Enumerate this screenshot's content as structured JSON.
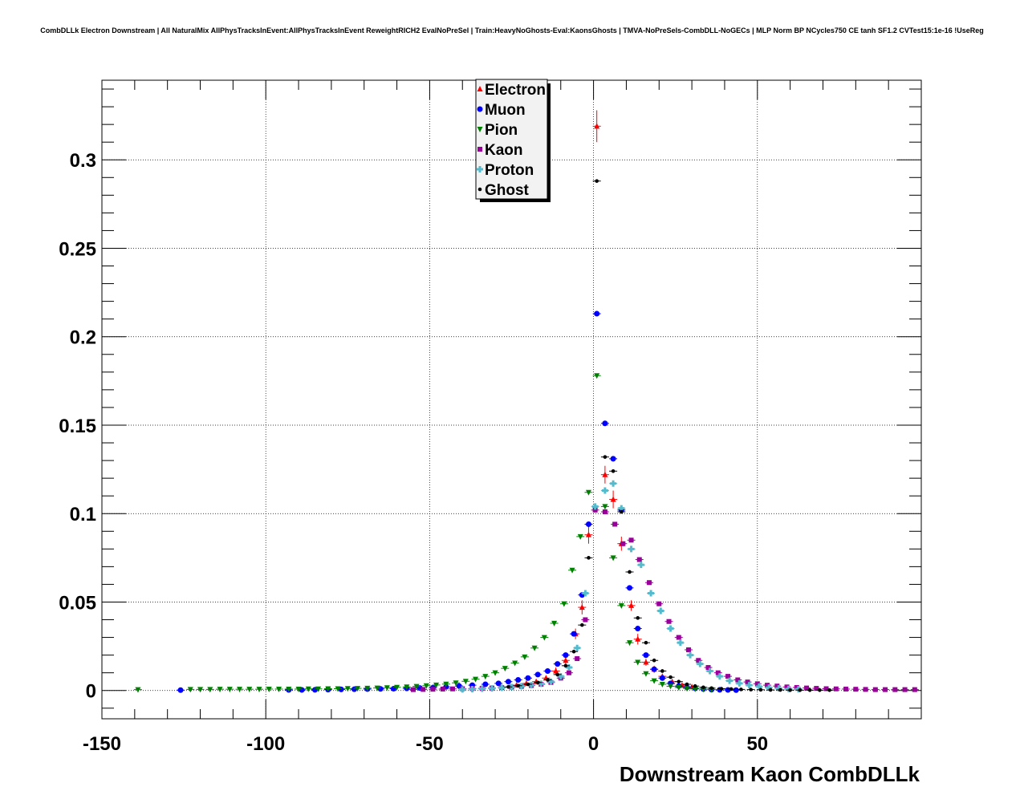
{
  "title": "CombDLLk Electron Downstream | All NaturalMix AllPhysTracksInEvent:AllPhysTracksInEvent ReweightRICH2 EvalNoPreSel | Train:HeavyNoGhosts-Eval:KaonsGhosts | TMVA-NoPreSels-CombDLL-NoGECs | MLP Norm BP NCycles750 CE tanh SF1.2 CVTest15:1e-16 !UseReg",
  "chart_data": {
    "type": "scatter",
    "title": "CombDLLk Electron Downstream | All NaturalMix AllPhysTracksInEvent:AllPhysTracksInEvent ReweightRICH2 EvalNoPreSel | Train:HeavyNoGhosts-Eval:KaonsGhosts | TMVA-NoPreSels-CombDLL-NoGECs | MLP Norm BP NCycles750 CE tanh SF1.2 CVTest15:1e-16 !UseReg",
    "xlabel": "Downstream Kaon CombDLLk",
    "ylabel": "",
    "xlim": [
      -150,
      100
    ],
    "ylim": [
      -0.016,
      0.345
    ],
    "grid": true,
    "legend_position": "top-center",
    "xticks": [
      -150,
      -100,
      -50,
      0,
      50
    ],
    "xtick_labels": [
      "-150",
      "-100",
      "-50",
      "0",
      "50"
    ],
    "yticks": [
      0,
      0.05,
      0.1,
      0.15,
      0.2,
      0.25,
      0.3
    ],
    "ytick_labels": [
      "0",
      "0.05",
      "0.1",
      "0.15",
      "0.2",
      "0.25",
      "0.3"
    ],
    "series": [
      {
        "name": "Electron",
        "color": "#ff0000",
        "marker": "triangle-up",
        "points": [
          [
            -23.5,
            0.003
          ],
          [
            -20.5,
            0.004
          ],
          [
            -17.5,
            0.005
          ],
          [
            -14.5,
            0.007
          ],
          [
            -11.5,
            0.011
          ],
          [
            -8.5,
            0.017
          ],
          [
            -5.5,
            0.032
          ],
          [
            -3.5,
            0.047
          ],
          [
            -1.5,
            0.088
          ],
          [
            1,
            0.319
          ],
          [
            3.5,
            0.122
          ],
          [
            6,
            0.108
          ],
          [
            8.5,
            0.083
          ],
          [
            11.5,
            0.048
          ],
          [
            13.5,
            0.029
          ],
          [
            16,
            0.016
          ],
          [
            18.5,
            0.012
          ],
          [
            21,
            0.008
          ],
          [
            24,
            0.005
          ],
          [
            27,
            0.003
          ],
          [
            30,
            0.002
          ]
        ],
        "yerr": [
          0.001,
          0.001,
          0.001,
          0.001,
          0.002,
          0.002,
          0.003,
          0.004,
          0.005,
          0.009,
          0.005,
          0.005,
          0.004,
          0.003,
          0.003,
          0.002,
          0.002,
          0.001,
          0.001,
          0.001,
          0.001
        ]
      },
      {
        "name": "Muon",
        "color": "#0000ff",
        "marker": "circle",
        "points": [
          [
            -126,
            0.0002
          ],
          [
            -93,
            0.0003
          ],
          [
            -89,
            0.0003
          ],
          [
            -85,
            0.0004
          ],
          [
            -81,
            0.0005
          ],
          [
            -77,
            0.0006
          ],
          [
            -73,
            0.0007
          ],
          [
            -69,
            0.0008
          ],
          [
            -65,
            0.0009
          ],
          [
            -61,
            0.001
          ],
          [
            -57,
            0.0012
          ],
          [
            -53,
            0.0014
          ],
          [
            -49,
            0.0016
          ],
          [
            -45,
            0.002
          ],
          [
            -41,
            0.0025
          ],
          [
            -37,
            0.003
          ],
          [
            -33,
            0.0035
          ],
          [
            -29,
            0.004
          ],
          [
            -26,
            0.005
          ],
          [
            -23,
            0.006
          ],
          [
            -20,
            0.007
          ],
          [
            -17,
            0.009
          ],
          [
            -14,
            0.011
          ],
          [
            -11,
            0.015
          ],
          [
            -8.5,
            0.02
          ],
          [
            -6,
            0.032
          ],
          [
            -3.5,
            0.054
          ],
          [
            -1.5,
            0.094
          ],
          [
            1,
            0.213
          ],
          [
            3.5,
            0.151
          ],
          [
            6,
            0.131
          ],
          [
            8.5,
            0.102
          ],
          [
            11,
            0.058
          ],
          [
            13.5,
            0.035
          ],
          [
            16,
            0.02
          ],
          [
            18.5,
            0.012
          ],
          [
            21,
            0.007
          ],
          [
            23.5,
            0.004
          ],
          [
            26,
            0.0025
          ],
          [
            28.5,
            0.0018
          ],
          [
            31,
            0.0012
          ],
          [
            33.5,
            0.0008
          ],
          [
            36,
            0.0005
          ],
          [
            38.5,
            0.0004
          ],
          [
            41,
            0.0003
          ],
          [
            43.5,
            0.0002
          ]
        ]
      },
      {
        "name": "Pion",
        "color": "#008000",
        "marker": "triangle-down",
        "points": [
          [
            -139,
            0.0005
          ],
          [
            -123,
            0.0006
          ],
          [
            -120,
            0.0006
          ],
          [
            -117,
            0.0006
          ],
          [
            -114,
            0.0007
          ],
          [
            -111,
            0.0007
          ],
          [
            -108,
            0.0007
          ],
          [
            -105,
            0.0007
          ],
          [
            -102,
            0.0007
          ],
          [
            -99,
            0.0008
          ],
          [
            -96,
            0.0008
          ],
          [
            -93,
            0.0008
          ],
          [
            -90,
            0.0008
          ],
          [
            -87,
            0.0009
          ],
          [
            -84,
            0.0009
          ],
          [
            -81,
            0.001
          ],
          [
            -78,
            0.001
          ],
          [
            -75,
            0.0011
          ],
          [
            -72,
            0.0012
          ],
          [
            -69,
            0.0013
          ],
          [
            -66,
            0.0014
          ],
          [
            -63,
            0.0016
          ],
          [
            -60,
            0.0018
          ],
          [
            -57,
            0.002
          ],
          [
            -54,
            0.0023
          ],
          [
            -51,
            0.0027
          ],
          [
            -48,
            0.0031
          ],
          [
            -45,
            0.0036
          ],
          [
            -42,
            0.0043
          ],
          [
            -39,
            0.0052
          ],
          [
            -36,
            0.0064
          ],
          [
            -33,
            0.008
          ],
          [
            -30,
            0.01
          ],
          [
            -27,
            0.0125
          ],
          [
            -24,
            0.0155
          ],
          [
            -21,
            0.019
          ],
          [
            -18,
            0.024
          ],
          [
            -15,
            0.03
          ],
          [
            -12,
            0.038
          ],
          [
            -9,
            0.049
          ],
          [
            -6.5,
            0.068
          ],
          [
            -4,
            0.087
          ],
          [
            -1.5,
            0.112
          ],
          [
            1,
            0.178
          ],
          [
            3.5,
            0.104
          ],
          [
            6,
            0.075
          ],
          [
            8.5,
            0.048
          ],
          [
            11,
            0.027
          ],
          [
            13.5,
            0.016
          ],
          [
            16,
            0.0095
          ],
          [
            18.5,
            0.0055
          ],
          [
            21,
            0.0035
          ],
          [
            23.5,
            0.0024
          ],
          [
            26,
            0.0017
          ],
          [
            28.5,
            0.0012
          ],
          [
            31,
            0.0009
          ],
          [
            33.5,
            0.0007
          ],
          [
            36,
            0.0005
          ]
        ]
      },
      {
        "name": "Kaon",
        "color": "#990099",
        "marker": "square",
        "points": [
          [
            -55,
            0.0005
          ],
          [
            -52,
            0.0006
          ],
          [
            -49,
            0.0007
          ],
          [
            -46,
            0.0008
          ],
          [
            -43,
            0.0009
          ],
          [
            -40,
            0.001
          ],
          [
            -37,
            0.0011
          ],
          [
            -34,
            0.0012
          ],
          [
            -31,
            0.0014
          ],
          [
            -28,
            0.0016
          ],
          [
            -25,
            0.0019
          ],
          [
            -22,
            0.0023
          ],
          [
            -19,
            0.0028
          ],
          [
            -16,
            0.0035
          ],
          [
            -13,
            0.0045
          ],
          [
            -10,
            0.007
          ],
          [
            -7.5,
            0.01
          ],
          [
            -5,
            0.018
          ],
          [
            -2.5,
            0.04
          ],
          [
            0.5,
            0.102
          ],
          [
            3.5,
            0.101
          ],
          [
            6.5,
            0.094
          ],
          [
            9,
            0.083
          ],
          [
            11.5,
            0.085
          ],
          [
            14,
            0.074
          ],
          [
            17,
            0.061
          ],
          [
            20,
            0.049
          ],
          [
            23,
            0.039
          ],
          [
            26,
            0.03
          ],
          [
            29,
            0.023
          ],
          [
            32,
            0.017
          ],
          [
            35,
            0.013
          ],
          [
            38,
            0.01
          ],
          [
            41,
            0.008
          ],
          [
            44,
            0.006
          ],
          [
            47,
            0.0048
          ],
          [
            50,
            0.0038
          ],
          [
            53,
            0.003
          ],
          [
            56,
            0.0025
          ],
          [
            59,
            0.002
          ],
          [
            62,
            0.0017
          ],
          [
            65,
            0.0014
          ],
          [
            68,
            0.0012
          ],
          [
            71,
            0.001
          ],
          [
            74,
            0.0009
          ],
          [
            77,
            0.0008
          ],
          [
            80,
            0.0007
          ],
          [
            83,
            0.0006
          ],
          [
            86,
            0.0005
          ],
          [
            89,
            0.0005
          ],
          [
            92,
            0.0005
          ],
          [
            95,
            0.0005
          ],
          [
            98,
            0.0005
          ]
        ]
      },
      {
        "name": "Proton",
        "color": "#55bbcc",
        "marker": "cross",
        "points": [
          [
            -40,
            0.0006
          ],
          [
            -37,
            0.0008
          ],
          [
            -34,
            0.001
          ],
          [
            -31,
            0.0012
          ],
          [
            -28,
            0.0015
          ],
          [
            -25,
            0.0019
          ],
          [
            -22,
            0.0024
          ],
          [
            -19,
            0.003
          ],
          [
            -16,
            0.0038
          ],
          [
            -13,
            0.005
          ],
          [
            -10,
            0.008
          ],
          [
            -7.5,
            0.013
          ],
          [
            -5,
            0.024
          ],
          [
            -2.5,
            0.055
          ],
          [
            0.5,
            0.104
          ],
          [
            3.5,
            0.113
          ],
          [
            6,
            0.117
          ],
          [
            8.5,
            0.103
          ],
          [
            11.5,
            0.08
          ],
          [
            14.5,
            0.071
          ],
          [
            17.5,
            0.055
          ],
          [
            20.5,
            0.045
          ],
          [
            23.5,
            0.035
          ],
          [
            26.5,
            0.027
          ],
          [
            29.5,
            0.02
          ],
          [
            32.5,
            0.015
          ],
          [
            35.5,
            0.011
          ],
          [
            38.5,
            0.008
          ],
          [
            41.5,
            0.0055
          ],
          [
            44.5,
            0.004
          ],
          [
            47.5,
            0.003
          ],
          [
            50.5,
            0.0022
          ],
          [
            53.5,
            0.0016
          ],
          [
            56.5,
            0.0012
          ],
          [
            59.5,
            0.0009
          ],
          [
            62.5,
            0.0007
          ]
        ]
      },
      {
        "name": "Ghost",
        "color": "#000000",
        "marker": "circle-small",
        "points": [
          [
            -26,
            0.002
          ],
          [
            -23,
            0.0027
          ],
          [
            -20,
            0.0035
          ],
          [
            -17,
            0.0045
          ],
          [
            -14,
            0.006
          ],
          [
            -11,
            0.009
          ],
          [
            -8.5,
            0.014
          ],
          [
            -6,
            0.022
          ],
          [
            -3.5,
            0.037
          ],
          [
            -1.5,
            0.075
          ],
          [
            1,
            0.288
          ],
          [
            3.5,
            0.132
          ],
          [
            6,
            0.124
          ],
          [
            8.5,
            0.101
          ],
          [
            11,
            0.067
          ],
          [
            13.5,
            0.041
          ],
          [
            16,
            0.027
          ],
          [
            18.5,
            0.017
          ],
          [
            21,
            0.011
          ],
          [
            23.5,
            0.0075
          ],
          [
            26,
            0.005
          ],
          [
            28.5,
            0.0035
          ],
          [
            31,
            0.0025
          ],
          [
            33.5,
            0.0018
          ],
          [
            36,
            0.0013
          ],
          [
            39,
            0.001
          ],
          [
            42,
            0.0008
          ],
          [
            45,
            0.0006
          ],
          [
            48,
            0.0005
          ],
          [
            51,
            0.0004
          ],
          [
            54,
            0.0003
          ],
          [
            57,
            0.0003
          ],
          [
            60,
            0.0002
          ],
          [
            63,
            0.0002
          ],
          [
            66,
            0.0002
          ],
          [
            69,
            0.0002
          ],
          [
            72,
            0.0002
          ]
        ]
      }
    ]
  }
}
